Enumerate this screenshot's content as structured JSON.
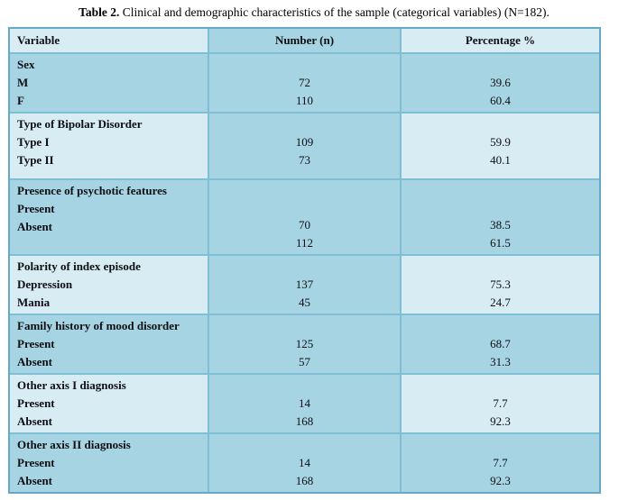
{
  "caption": {
    "label": "Table 2.",
    "text": " Clinical and demographic characteristics of the sample (categorical variables) (N=182)."
  },
  "colors": {
    "section_dark": "#a6d4e2",
    "section_light": "#d7ecf3",
    "grid_line": "#7fbfd5",
    "outer_border": "#65a8c8",
    "text": "#0e0f14"
  },
  "chart_data": {
    "type": "table",
    "title": "Table 2. Clinical and demographic characteristics of the sample (categorical variables) (N=182).",
    "columns": [
      "Variable",
      "Number (n)",
      "Percentage %"
    ],
    "n_total": "182"
  },
  "table": {
    "headers": {
      "variable": "Variable",
      "number": "Number (n)",
      "percentage": "Percentage %"
    },
    "sections": [
      {
        "title": "Sex",
        "rows": [
          {
            "label": "M",
            "n": "72",
            "pct": "39.6"
          },
          {
            "label": "F",
            "n": "110",
            "pct": "60.4"
          }
        ]
      },
      {
        "title": "Type of Bipolar Disorder",
        "rows": [
          {
            "label": "Type I",
            "n": "109",
            "pct": "59.9"
          },
          {
            "label": "Type II",
            "n": "73",
            "pct": "40.1"
          }
        ]
      },
      {
        "title": "Presence of psychotic features",
        "rows": [
          {
            "label": "Present",
            "n": "70",
            "pct": "38.5"
          },
          {
            "label": "Absent",
            "n": "112",
            "pct": "61.5"
          }
        ]
      },
      {
        "title": "Polarity of index episode",
        "rows": [
          {
            "label": "Depression",
            "n": "137",
            "pct": "75.3"
          },
          {
            "label": "Mania",
            "n": "45",
            "pct": "24.7"
          }
        ]
      },
      {
        "title": "Family history of mood disorder",
        "rows": [
          {
            "label": "Present",
            "n": "125",
            "pct": "68.7"
          },
          {
            "label": "Absent",
            "n": "57",
            "pct": "31.3"
          }
        ]
      },
      {
        "title": "Other axis I diagnosis",
        "rows": [
          {
            "label": "Present",
            "n": "14",
            "pct": "7.7"
          },
          {
            "label": "Absent",
            "n": "168",
            "pct": "92.3"
          }
        ]
      },
      {
        "title": "Other axis II diagnosis",
        "rows": [
          {
            "label": "Present",
            "n": "14",
            "pct": "7.7"
          },
          {
            "label": "Absent",
            "n": "168",
            "pct": "92.3"
          }
        ]
      }
    ]
  }
}
